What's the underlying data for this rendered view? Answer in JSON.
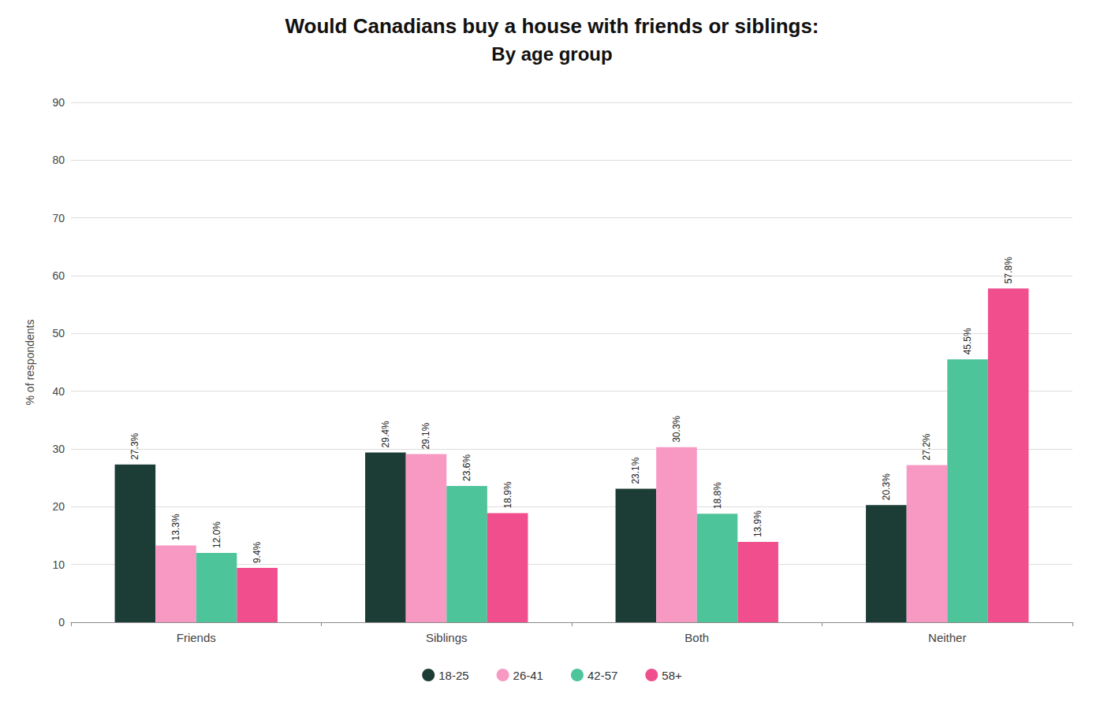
{
  "chart_data": {
    "type": "bar",
    "title": "Would Canadians buy a house with friends or siblings:",
    "subtitle": "By age group",
    "ylabel": "% of respondents",
    "categories": [
      "Friends",
      "Siblings",
      "Both",
      "Neither"
    ],
    "series": [
      {
        "name": "18-25",
        "color": "#1c3d35",
        "values": [
          27.3,
          29.4,
          23.1,
          20.3
        ],
        "value_labels": [
          "27.3%",
          "29.4%",
          "23.1%",
          "20.3%"
        ]
      },
      {
        "name": "26-41",
        "color": "#f799c3",
        "values": [
          13.3,
          29.1,
          30.3,
          27.2
        ],
        "value_labels": [
          "13.3%",
          "29.1%",
          "30.3%",
          "27.2%"
        ]
      },
      {
        "name": "42-57",
        "color": "#4ec49a",
        "values": [
          12.0,
          23.6,
          18.8,
          45.5
        ],
        "value_labels": [
          "12.0%",
          "23.6%",
          "18.8%",
          "45.5%"
        ]
      },
      {
        "name": "58+",
        "color": "#f04e8c",
        "values": [
          9.4,
          18.9,
          13.9,
          57.8
        ],
        "value_labels": [
          "9.4%",
          "18.9%",
          "13.9%",
          "57.8%"
        ]
      }
    ],
    "ylim": [
      0,
      90
    ],
    "yticks": [
      0,
      10,
      20,
      30,
      40,
      50,
      60,
      70,
      80,
      90
    ],
    "grid": true,
    "legend": "bottom",
    "data_labels": true
  }
}
